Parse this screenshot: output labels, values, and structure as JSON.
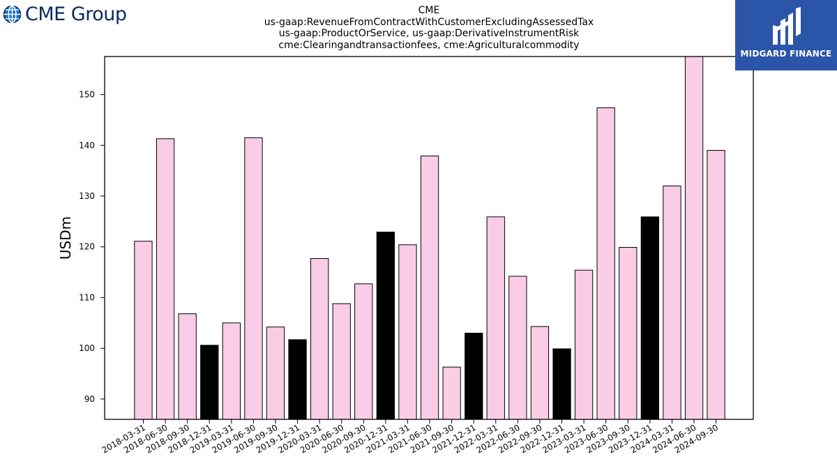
{
  "header": {
    "company_logo_text": "CME Group",
    "title_lines": [
      "CME",
      "us-gaap:RevenueFromContractWithCustomerExcludingAssessedTax",
      "us-gaap:ProductOrService, us-gaap:DerivativeInstrumentRisk",
      "cme:Clearingandtransactionfees, cme:Agriculturalcommodity"
    ],
    "watermark_text": "MIDGARD FINANCE"
  },
  "colors": {
    "bar_default": "#fbcce6",
    "bar_q4": "#000000",
    "bar_edge": "#000000",
    "logo_blue": "#0a2a5e",
    "watermark_bg": "#2b55a8"
  },
  "icons": {
    "company_logo": "globe-icon",
    "watermark": "midgard-m-icon"
  },
  "chart_data": {
    "type": "bar",
    "ylabel": "USDm",
    "xlabel": "",
    "ylim": [
      86,
      157.5
    ],
    "yticks": [
      90,
      100,
      110,
      120,
      130,
      140,
      150
    ],
    "grid": false,
    "categories": [
      "2018-03-31",
      "2018-06-30",
      "2018-09-30",
      "2018-12-31",
      "2019-03-31",
      "2019-06-30",
      "2019-09-30",
      "2019-12-31",
      "2020-03-31",
      "2020-06-30",
      "2020-09-30",
      "2020-12-31",
      "2021-03-31",
      "2021-06-30",
      "2021-09-30",
      "2021-12-31",
      "2022-03-31",
      "2022-06-30",
      "2022-09-30",
      "2022-12-31",
      "2023-03-31",
      "2023-06-30",
      "2023-09-30",
      "2023-12-31",
      "2024-03-31",
      "2024-06-30",
      "2024-09-30"
    ],
    "values": [
      121.1,
      141.3,
      106.8,
      100.6,
      105.0,
      141.5,
      104.2,
      101.7,
      117.7,
      108.8,
      112.7,
      122.9,
      120.4,
      137.9,
      96.3,
      103.0,
      125.9,
      114.2,
      104.3,
      99.9,
      115.4,
      147.4,
      119.9,
      125.9,
      132.0,
      158.5,
      139.0
    ],
    "q4_highlight": [
      false,
      false,
      false,
      true,
      false,
      false,
      false,
      true,
      false,
      false,
      false,
      true,
      false,
      false,
      false,
      true,
      false,
      false,
      false,
      true,
      false,
      false,
      false,
      true,
      false,
      false,
      false
    ]
  }
}
